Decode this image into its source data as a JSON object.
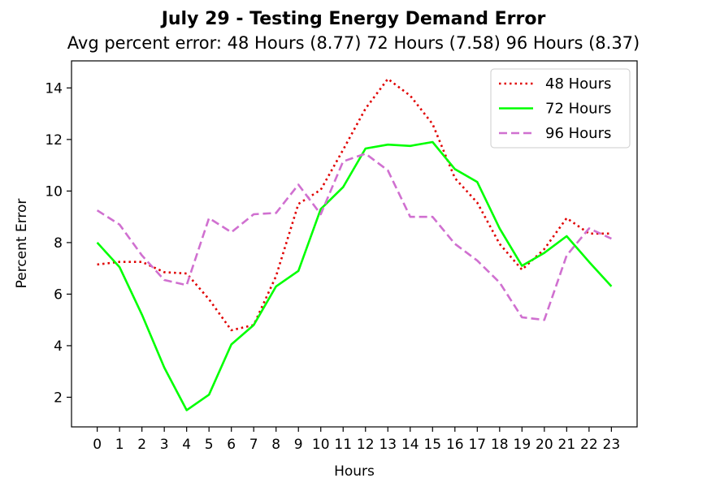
{
  "chart_data": {
    "type": "line",
    "title": "July 29 - Testing Energy Demand Error",
    "subtitle": "Avg percent error: 48 Hours (8.77) 72 Hours (7.58) 96 Hours (8.37)",
    "xlabel": "Hours",
    "ylabel": "Percent Error",
    "x": [
      0,
      1,
      2,
      3,
      4,
      5,
      6,
      7,
      8,
      9,
      10,
      11,
      12,
      13,
      14,
      15,
      16,
      17,
      18,
      19,
      20,
      21,
      22,
      23
    ],
    "xticks": [
      "0",
      "1",
      "2",
      "3",
      "4",
      "5",
      "6",
      "7",
      "8",
      "9",
      "10",
      "11",
      "12",
      "13",
      "14",
      "15",
      "16",
      "17",
      "18",
      "19",
      "20",
      "21",
      "22",
      "23"
    ],
    "ylim": [
      0.85,
      15.05
    ],
    "yticks": [
      2,
      4,
      6,
      8,
      10,
      12,
      14
    ],
    "xlim": [
      -1.15,
      24.15
    ],
    "grid": false,
    "legend_position": "top-right",
    "series": [
      {
        "name": "48 Hours",
        "color": "#e00000",
        "style": "dotted",
        "values": [
          7.15,
          7.25,
          7.25,
          6.85,
          6.8,
          5.8,
          4.6,
          4.8,
          6.7,
          9.5,
          10.05,
          11.6,
          13.2,
          14.35,
          13.7,
          12.6,
          10.5,
          9.55,
          7.95,
          6.95,
          7.75,
          8.95,
          8.35,
          8.35
        ]
      },
      {
        "name": "72 Hours",
        "color": "#00ff00",
        "style": "solid",
        "values": [
          8.0,
          7.05,
          5.2,
          3.15,
          1.5,
          2.1,
          4.05,
          4.8,
          6.3,
          6.9,
          9.3,
          10.15,
          11.65,
          11.8,
          11.75,
          11.9,
          10.85,
          10.35,
          8.55,
          7.1,
          7.6,
          8.25,
          7.25,
          6.3
        ]
      },
      {
        "name": "96 Hours",
        "color": "#d070d0",
        "style": "dashed",
        "values": [
          9.25,
          8.7,
          7.5,
          6.55,
          6.35,
          8.95,
          8.4,
          9.1,
          9.15,
          10.25,
          9.1,
          11.15,
          11.45,
          10.8,
          9.0,
          9.0,
          7.95,
          7.3,
          6.45,
          5.1,
          5.0,
          7.5,
          8.55,
          8.15
        ]
      }
    ]
  }
}
